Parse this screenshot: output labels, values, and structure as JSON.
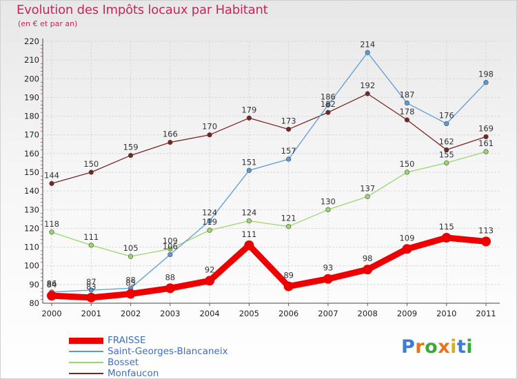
{
  "title": "Evolution des Impôts locaux par Habitant",
  "subtitle": "(en € et par an)",
  "logo": {
    "text": "Proxiti",
    "letter_colors": [
      "#3a7dd6",
      "#e8741c",
      "#3fa83b",
      "#e8741c",
      "#d6b01c",
      "#3a7dd6",
      "#3fa83b"
    ]
  },
  "chart_data": {
    "type": "line",
    "title": "Evolution des Impôts locaux par Habitant",
    "subtitle": "(en € et par an)",
    "x": [
      "2000",
      "2001",
      "2002",
      "2003",
      "2004",
      "2005",
      "2006",
      "2007",
      "2008",
      "2009",
      "2010",
      "2011"
    ],
    "ylim": [
      80,
      220
    ],
    "yticks": [
      80,
      90,
      100,
      110,
      120,
      130,
      140,
      150,
      160,
      170,
      180,
      190,
      200,
      210,
      220
    ],
    "grid": true,
    "legend_position": "bottom-left",
    "series": [
      {
        "name": "FRAISSE",
        "color": "#ee0000",
        "values": [
          84,
          83,
          85,
          88,
          92,
          111,
          89,
          93,
          98,
          109,
          115,
          113
        ]
      },
      {
        "name": "Saint-Georges-Blancaneix",
        "color": "#5b9bd5",
        "values": [
          86,
          87,
          88,
          106,
          124,
          151,
          157,
          186,
          214,
          187,
          176,
          198
        ]
      },
      {
        "name": "Bosset",
        "color": "#9bd66b",
        "values": [
          118,
          111,
          105,
          109,
          119,
          124,
          121,
          130,
          137,
          150,
          155,
          161
        ]
      },
      {
        "name": "Monfaucon",
        "color": "#7a2424",
        "values": [
          144,
          150,
          159,
          166,
          170,
          179,
          173,
          182,
          192,
          178,
          162,
          169
        ]
      }
    ]
  }
}
